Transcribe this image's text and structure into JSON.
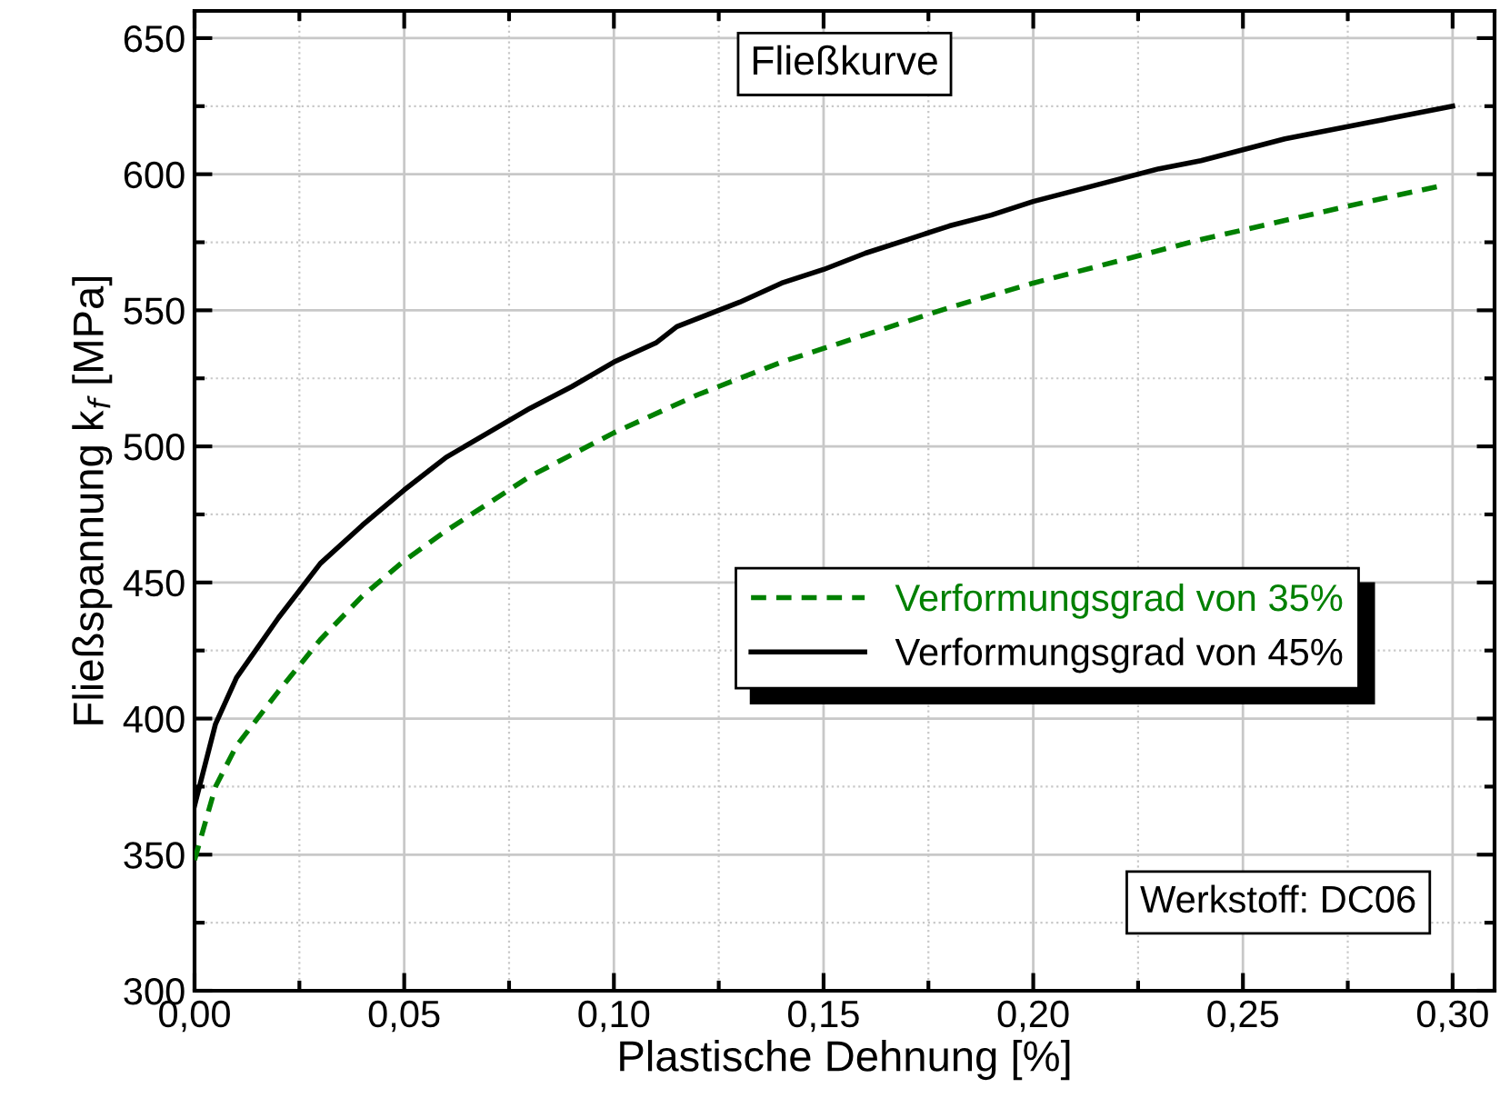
{
  "chart_data": {
    "type": "line",
    "title": "Fließkurve",
    "xlabel": "Plastische Dehnung [%]",
    "ylabel": "Fließspannung k$_{f}$ [MPa]",
    "annotations": [
      "Werkstoff: DC06"
    ],
    "series": [
      {
        "name": "Verformungsgrad von 35%",
        "color": "#008000",
        "line_style": "dashed",
        "x": [
          0,
          0.005,
          0.01,
          0.02,
          0.03,
          0.04,
          0.05,
          0.06,
          0.07,
          0.08,
          0.09,
          0.1,
          0.12,
          0.14,
          0.16,
          0.18,
          0.2,
          0.22,
          0.24,
          0.26,
          0.28,
          0.298
        ],
        "values": [
          348,
          375,
          390,
          410,
          429,
          445,
          458,
          469,
          479,
          489,
          497,
          505,
          519,
          531,
          541,
          551,
          560,
          568,
          576,
          583,
          590,
          596
        ]
      },
      {
        "name": "Verformungsgrad von 45%",
        "color": "#000000",
        "line_style": "solid",
        "x": [
          0,
          0.005,
          0.01,
          0.02,
          0.03,
          0.04,
          0.05,
          0.06,
          0.07,
          0.08,
          0.09,
          0.1,
          0.11,
          0.115,
          0.12,
          0.13,
          0.14,
          0.15,
          0.16,
          0.17,
          0.18,
          0.19,
          0.2,
          0.21,
          0.22,
          0.23,
          0.24,
          0.25,
          0.26,
          0.27,
          0.28,
          0.29,
          0.3
        ],
        "values": [
          368,
          398,
          415,
          437,
          457,
          471,
          484,
          496,
          505,
          514,
          522,
          531,
          538,
          544,
          547,
          553,
          560,
          565,
          571,
          576,
          581,
          585,
          590,
          594,
          598,
          602,
          605,
          609,
          613,
          616,
          619,
          622,
          625
        ]
      }
    ],
    "xlim": [
      0,
      0.31
    ],
    "ylim": [
      300,
      660
    ],
    "xticks": [
      {
        "value": 0,
        "label": "0,00"
      },
      {
        "value": 0.05,
        "label": "0,05"
      },
      {
        "value": 0.1,
        "label": "0,10"
      },
      {
        "value": 0.15,
        "label": "0,15"
      },
      {
        "value": 0.2,
        "label": "0,20"
      },
      {
        "value": 0.25,
        "label": "0,25"
      },
      {
        "value": 0.3,
        "label": "0,30"
      }
    ],
    "yticks": [
      300,
      350,
      400,
      450,
      500,
      550,
      600,
      650
    ],
    "grid": true,
    "legend": "right",
    "marker": "none"
  }
}
